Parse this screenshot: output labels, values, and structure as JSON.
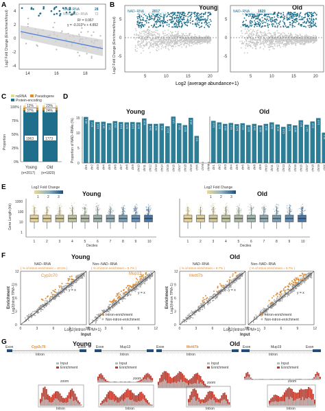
{
  "panel_labels": {
    "a": "A",
    "b": "B",
    "c": "C",
    "d": "D",
    "e": "E",
    "f": "F",
    "g": "G"
  },
  "colors": {
    "teal": "#1f6e8c",
    "grey": "#b9b9b9",
    "orange": "#e08a2e",
    "yellow": "#e7d89a",
    "red": "#c0392b",
    "blue": "#4f7fd6",
    "light_teal": "#7aaec4"
  },
  "panel_a": {
    "legend_nad": "NAD−RNA",
    "count_nad": "28",
    "legend_non": "Non−NAD−RNA",
    "count_non": "72",
    "r2": "R² = 0.067",
    "eq": "y = -0.313*x + 4.852",
    "ylabel": "Log2 Fold Change (Enrichment/Input)",
    "xticks": [
      "14",
      "16",
      "18"
    ],
    "yticks": [
      "4",
      "2",
      "0",
      "-2",
      "-4"
    ],
    "x_domain": [
      13.5,
      19.5
    ],
    "y_domain": [
      -4.5,
      5
    ]
  },
  "panel_b": {
    "young_title": "Young",
    "old_title": "Old",
    "young_legend": "NAD−RNA",
    "young_count": "2017",
    "old_legend": "NAD−RNA",
    "old_count": "1820",
    "ylabel": "Log2 Fold Change (Enrichment/Input)",
    "xlabel": "Log2 (average abundance+1)",
    "xticks": [
      "5",
      "10",
      "15",
      "20"
    ],
    "yticks": [
      "5",
      "0",
      "-5"
    ]
  },
  "panel_c": {
    "legend_ncrna": "ncRNA",
    "legend_pseudogene": "Pseudogene",
    "legend_protein": "Protein-encoding",
    "young_label": "Young",
    "young_n": "(n=2017)",
    "old_label": "Old",
    "old_n": "(n=1820)",
    "young_top1": "12%",
    "young_top2": "37%",
    "young_main": "1963",
    "old_top1": "23%",
    "old_top2": "24%",
    "old_main": "1773",
    "ylabel": "Proportion",
    "yticks": [
      "100%",
      "75%",
      "50%",
      "25%",
      "0%"
    ]
  },
  "panel_d": {
    "young_title": "Young",
    "old_title": "Old",
    "ylabel": "Proportion of NAD−RNAs (%)",
    "yticks": [
      "15",
      "10",
      "5",
      "0"
    ],
    "categories": [
      "chr1",
      "chr2",
      "chr3",
      "chr4",
      "chr5",
      "chr6",
      "chr7",
      "chr8",
      "chr9",
      "chr10",
      "chr11",
      "chr12",
      "chr13",
      "chr14",
      "chr15",
      "chr16",
      "chr17",
      "chr18",
      "chr19",
      "chrX",
      "chrY",
      "chrM"
    ],
    "young_values": [
      15.3,
      14.2,
      13.6,
      13.7,
      13.2,
      13.9,
      13.6,
      13.5,
      13.6,
      13.5,
      14.8,
      13.0,
      13.0,
      13.1,
      12.2,
      15.4,
      13.2,
      12.6,
      15.0,
      9.0,
      0,
      0
    ],
    "old_values": [
      14.0,
      13.5,
      13.0,
      13.3,
      12.9,
      13.2,
      12.6,
      13.0,
      12.5,
      13.0,
      13.5,
      12.8,
      12.0,
      12.9,
      12.5,
      14.2,
      12.7,
      13.8,
      14.9,
      10.1,
      0,
      0
    ]
  },
  "panel_e": {
    "young_title": "Young",
    "old_title": "Old",
    "legend_title": "Log2 Fold Change",
    "legend_ticks": [
      "1",
      "2",
      "3"
    ],
    "ylabel": "Gene Length (kb)",
    "xlabel": "Deciles",
    "deciles": [
      "1",
      "2",
      "3",
      "4",
      "5",
      "6",
      "7",
      "8",
      "9",
      "10"
    ],
    "yticks": [
      "1000",
      "100",
      "10",
      "1"
    ]
  },
  "panel_f": {
    "young_title": "Young",
    "old_title": "Old",
    "nad_label": "NAD−RNA",
    "non_label": "Non−NAD−RNA",
    "young_nad_pct": "( % of intron enrichment = 10.1% )",
    "young_non_pct": "( % of intron enrichment = 5.7% )",
    "old_nad_pct": "( % of intron enrichment = 9.7% )",
    "old_non_pct": "( % of intron enrichment = 5.7% )",
    "gene_y1": "Cyp2c70",
    "gene_y2": "Mup13",
    "gene_o1": "Mettl7b",
    "gene_o2": "Mup19",
    "yx": "y = x",
    "legend_intron": "Intron-enrichment",
    "legend_non": "Non-intron-enrichment",
    "ylabel_1": "Enrichment",
    "ylabel_2": "Log2(Intron TPM+1)",
    "xlabel_1": "Log2(Intron TPM+1)",
    "xlabel_2": "Input",
    "ticks": [
      "0",
      "3",
      "6",
      "9",
      "12"
    ]
  },
  "panel_g": {
    "young_title": "Young",
    "old_title": "Old",
    "exon": "Exon",
    "intron": "Intron",
    "zoom": "zoom",
    "input": "Input",
    "enrichment": "Enrichment",
    "gene_y1": "Cyp2c70",
    "gene_y2": "Mup13",
    "gene_o1": "Mettl7b",
    "gene_o2": "Mup19"
  }
}
